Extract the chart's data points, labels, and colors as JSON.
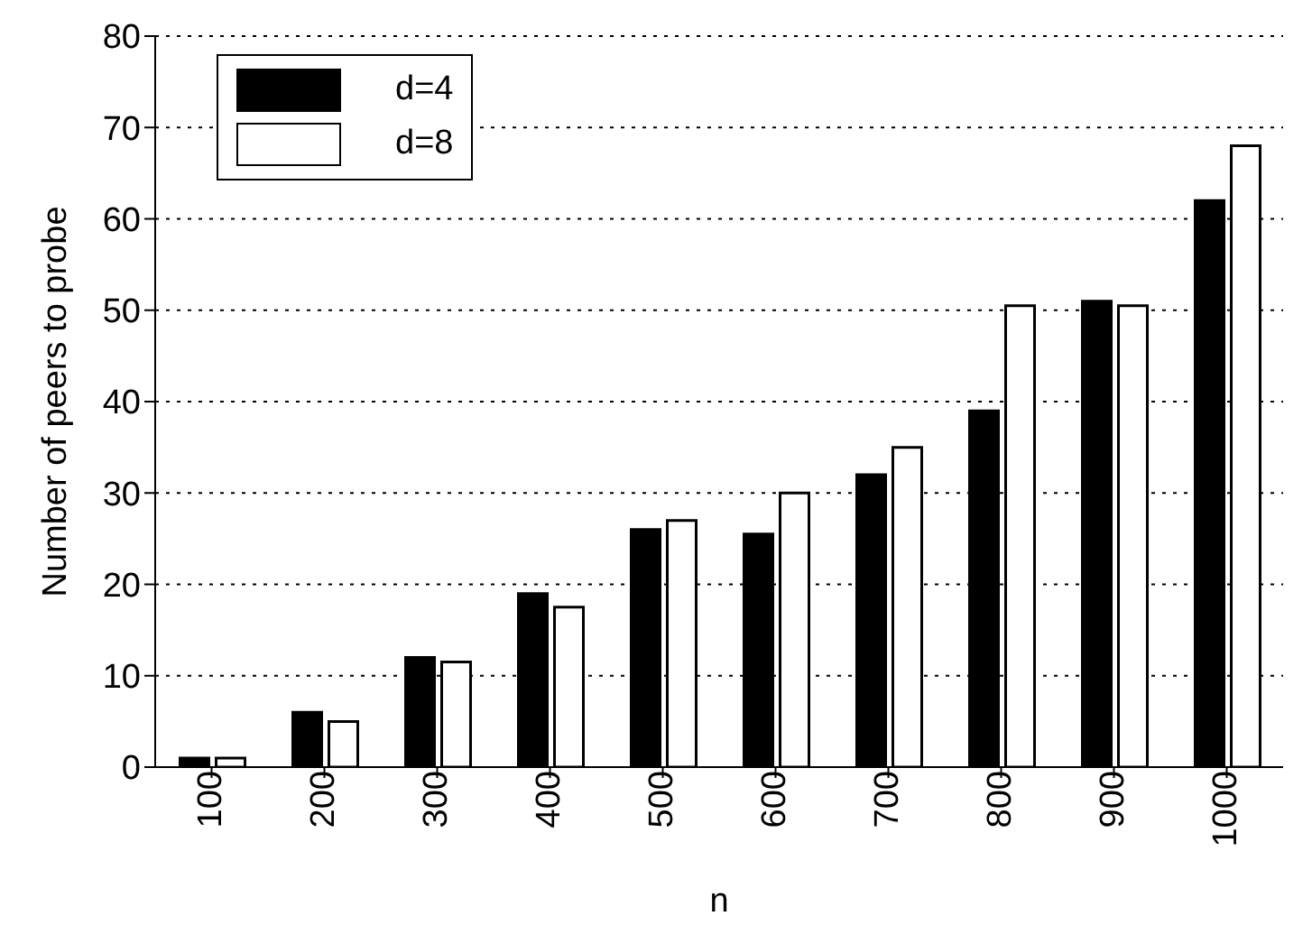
{
  "chart_data": {
    "type": "bar",
    "xlabel": "n",
    "ylabel": "Number of peers to probe",
    "categories": [
      "100",
      "200",
      "300",
      "400",
      "500",
      "600",
      "700",
      "800",
      "900",
      "1000"
    ],
    "series": [
      {
        "name": "d=4",
        "color": "#000000",
        "values": [
          1,
          6,
          12,
          19,
          26,
          25.5,
          32,
          39,
          51,
          62
        ]
      },
      {
        "name": "d=8",
        "color": "#ffffff",
        "values": [
          1,
          5,
          11.5,
          17.5,
          27,
          30,
          35,
          50.5,
          50.5,
          68
        ]
      }
    ],
    "ylim": [
      0,
      80
    ],
    "yticks": [
      0,
      10,
      20,
      30,
      40,
      50,
      60,
      70,
      80
    ],
    "grid": "y",
    "legend": "top left"
  }
}
